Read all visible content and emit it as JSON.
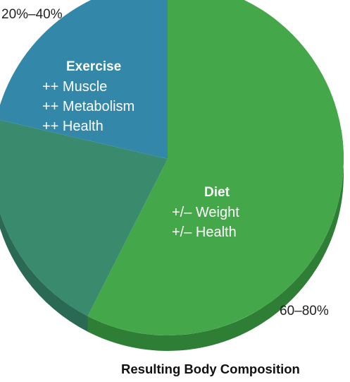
{
  "chart_data": {
    "type": "pie",
    "title": "Resulting Body Composition",
    "slices": [
      {
        "name": "Diet",
        "range_label": "60–80%",
        "lines": [
          "+/– Weight",
          "+/– Health"
        ],
        "color": "#44a84a",
        "side_color": "#2f7e35"
      },
      {
        "name": "",
        "range_label": "",
        "lines": [],
        "color": "#3a8a6e",
        "side_color": "#2a6a55"
      },
      {
        "name": "Exercise",
        "range_label": "20%–40%",
        "lines": [
          "++ Muscle",
          "++ Metabolism",
          "++ Health"
        ],
        "color": "#3388aa",
        "side_color": "#286c88"
      }
    ],
    "highlight_ranges": {
      "exercise": "20%–40%",
      "diet": "60–80%"
    }
  }
}
